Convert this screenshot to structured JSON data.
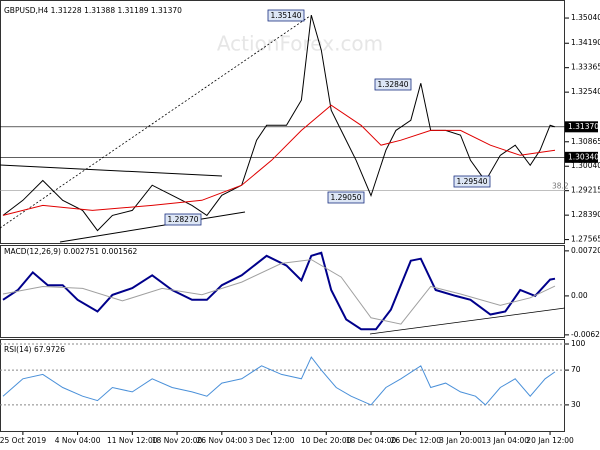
{
  "watermark": "ActionForex.com",
  "chart_data": [
    {
      "type": "line",
      "title": "GBPUSD,H4  1.31228 1.31388 1.31189 1.31370",
      "xlim": [
        0,
        112
      ],
      "ylim": [
        1.2745,
        1.3548
      ],
      "yticks": [
        {
          "value": 1.3504,
          "label": "1.35040"
        },
        {
          "value": 1.3419,
          "label": "1.34190"
        },
        {
          "value": 1.33365,
          "label": "1.33365"
        },
        {
          "value": 1.3254,
          "label": "1.32540"
        },
        {
          "value": 1.30865,
          "label": "1.30865"
        },
        {
          "value": 1.3004,
          "label": "1.30040"
        },
        {
          "value": 1.29215,
          "label": "1.29215"
        },
        {
          "value": 1.2839,
          "label": "1.28390"
        },
        {
          "value": 1.27565,
          "label": "1.27565"
        }
      ],
      "levels": [
        {
          "value": 1.3137,
          "label": "1.31370",
          "color": "#000000"
        },
        {
          "value": 1.3034,
          "label": "1.30340",
          "color": "#000000"
        },
        {
          "value": 1.29215,
          "label": "38.2",
          "color": "#999999"
        }
      ],
      "annotations": [
        "1.35140",
        "1.32840",
        "1.29050",
        "1.29540",
        "1.28270"
      ],
      "series": [
        {
          "color": "#000000",
          "x": [
            0,
            4,
            8,
            12,
            16,
            19,
            22,
            26,
            30,
            34,
            38,
            41,
            44,
            48,
            51,
            53,
            57,
            60,
            62,
            64,
            66,
            68,
            71,
            74,
            77,
            79,
            82,
            84,
            86,
            89,
            92,
            94,
            97,
            100,
            103,
            106,
            108,
            110,
            111
          ],
          "values": [
            1.2838,
            1.2889,
            1.2956,
            1.2889,
            1.2855,
            1.2787,
            1.2838,
            1.2855,
            1.294,
            1.2906,
            1.2872,
            1.2838,
            1.2906,
            1.294,
            1.3092,
            1.3142,
            1.3142,
            1.3227,
            1.3514,
            1.3396,
            1.3193,
            1.3125,
            1.3024,
            1.2905,
            1.3058,
            1.3125,
            1.3159,
            1.3284,
            1.3125,
            1.3125,
            1.3109,
            1.3024,
            1.2954,
            1.3041,
            1.3075,
            1.3007,
            1.3058,
            1.3142,
            1.3137
          ]
        },
        {
          "color": "#e00000",
          "x": [
            0,
            8,
            18,
            30,
            40,
            48,
            54,
            60,
            66,
            72,
            76,
            80,
            86,
            92,
            98,
            104,
            111
          ],
          "values": [
            1.2838,
            1.2872,
            1.2855,
            1.2872,
            1.2889,
            1.294,
            1.3024,
            1.3125,
            1.321,
            1.3142,
            1.3075,
            1.3092,
            1.3125,
            1.3125,
            1.3075,
            1.3041,
            1.3058
          ]
        }
      ]
    },
    {
      "type": "line",
      "title": "MACD(12,26,9) 0.002751 0.001562",
      "xlim": [
        0,
        112
      ],
      "ylim": [
        -0.00657,
        0.00798
      ],
      "yticks": [
        {
          "value": 0.007201,
          "label": "0.007201"
        },
        {
          "value": 0,
          "label": "0.00"
        },
        {
          "value": -0.006229,
          "label": "-0.006229"
        }
      ],
      "series": [
        {
          "color": "#00008b",
          "x": [
            0,
            3,
            6,
            9,
            12,
            15,
            19,
            22,
            26,
            30,
            34,
            38,
            41,
            44,
            48,
            53,
            57,
            60,
            62,
            64,
            66,
            69,
            72,
            75,
            78,
            82,
            84,
            87,
            91,
            94,
            98,
            101,
            104,
            107,
            110,
            111
          ],
          "values": [
            -0.00063,
            0.00094,
            0.00376,
            0.00172,
            0.00172,
            -0.00063,
            -0.0025,
            0.00016,
            0.00125,
            0.00329,
            0.00094,
            -0.00063,
            -0.00063,
            0.00172,
            0.00329,
            0.00642,
            0.00485,
            0.0025,
            0.00642,
            0.00689,
            0.00094,
            -0.00376,
            -0.00532,
            -0.00532,
            -0.00219,
            0.00563,
            0.00595,
            0.00094,
            0,
            -0.00063,
            -0.00297,
            -0.0025,
            0.00094,
            0,
            0.0026,
            0.002751
          ]
        },
        {
          "color": "#a0a0a0",
          "x": [
            0,
            8,
            16,
            24,
            32,
            40,
            48,
            56,
            62,
            68,
            74,
            80,
            86,
            92,
            100,
            106,
            111
          ],
          "values": [
            0.0003,
            0.0015,
            0.0012,
            -0.0008,
            0.0012,
            0.0002,
            0.0022,
            0.0052,
            0.0058,
            0.003,
            -0.0035,
            -0.0045,
            0.0015,
            0.0003,
            -0.0015,
            -0.0003,
            0.001562
          ]
        }
      ]
    },
    {
      "type": "line",
      "title": "RSI(14) 67.9726",
      "xlim": [
        0,
        112
      ],
      "ylim": [
        0,
        100
      ],
      "yticks": [
        100,
        70,
        30
      ],
      "xticks": [
        {
          "value": 4,
          "label": "25 Oct 2019"
        },
        {
          "value": 15,
          "label": "4 Nov 04:00"
        },
        {
          "value": 26,
          "label": "11 Nov 12:00"
        },
        {
          "value": 35,
          "label": "18 Nov 20:00"
        },
        {
          "value": 44,
          "label": "26 Nov 04:00"
        },
        {
          "value": 54,
          "label": "3 Dec 12:00"
        },
        {
          "value": 65,
          "label": "10 Dec 20:00"
        },
        {
          "value": 74,
          "label": "18 Dec 04:00"
        },
        {
          "value": 83,
          "label": "26 Dec 12:00"
        },
        {
          "value": 92,
          "label": "3 Jan 20:00"
        },
        {
          "value": 101,
          "label": "13 Jan 04:00"
        },
        {
          "value": 110,
          "label": "20 Jan 12:00"
        }
      ],
      "series": [
        {
          "color": "#4a90d9",
          "x": [
            0,
            4,
            8,
            12,
            16,
            19,
            22,
            26,
            30,
            34,
            38,
            41,
            44,
            48,
            52,
            56,
            60,
            62,
            64,
            67,
            70,
            74,
            77,
            80,
            84,
            86,
            89,
            92,
            95,
            97,
            100,
            103,
            106,
            109,
            111
          ],
          "values": [
            40,
            60,
            65,
            50,
            40,
            35,
            50,
            45,
            60,
            50,
            45,
            40,
            55,
            60,
            75,
            65,
            60,
            85,
            70,
            50,
            40,
            30,
            50,
            60,
            75,
            50,
            55,
            45,
            40,
            30,
            50,
            60,
            40,
            60,
            67.9726
          ]
        }
      ]
    }
  ]
}
